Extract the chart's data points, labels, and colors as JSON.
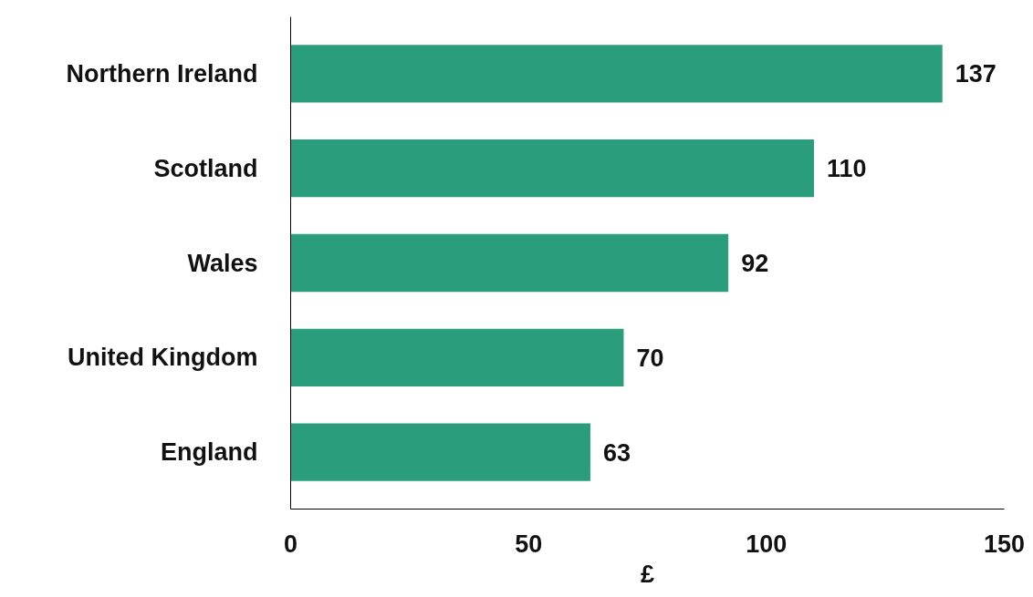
{
  "chart_data": {
    "type": "bar",
    "orientation": "horizontal",
    "xlabel": "£",
    "categories": [
      "Northern Ireland",
      "Scotland",
      "Wales",
      "United Kingdom",
      "England"
    ],
    "values": [
      137,
      110,
      92,
      70,
      63
    ],
    "color": "#2a9d7c",
    "xlim": [
      0,
      150
    ],
    "xticks": [
      0,
      50,
      100,
      150
    ],
    "data_labels": true,
    "grid": false
  }
}
